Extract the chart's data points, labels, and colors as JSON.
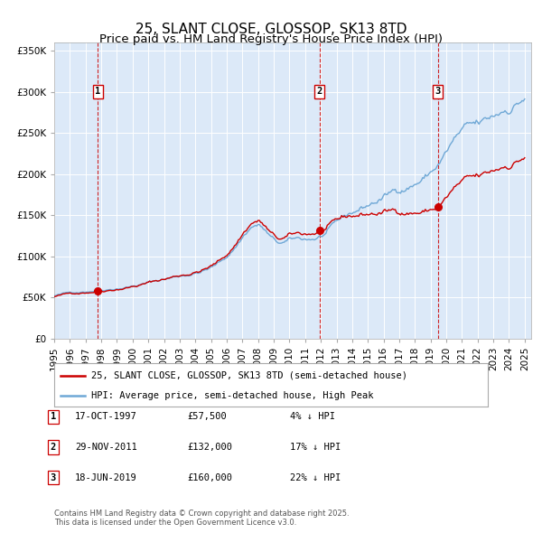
{
  "title": "25, SLANT CLOSE, GLOSSOP, SK13 8TD",
  "subtitle": "Price paid vs. HM Land Registry's House Price Index (HPI)",
  "legend_property": "25, SLANT CLOSE, GLOSSOP, SK13 8TD (semi-detached house)",
  "legend_hpi": "HPI: Average price, semi-detached house, High Peak",
  "transactions": [
    {
      "date": "1997-10-17",
      "price": 57500,
      "label": "1"
    },
    {
      "date": "2011-11-29",
      "price": 132000,
      "label": "2"
    },
    {
      "date": "2019-06-18",
      "price": 160000,
      "label": "3"
    }
  ],
  "table_rows": [
    [
      "1",
      "17-OCT-1997",
      "£57,500",
      "4% ↓ HPI"
    ],
    [
      "2",
      "29-NOV-2011",
      "£132,000",
      "17% ↓ HPI"
    ],
    [
      "3",
      "18-JUN-2019",
      "£160,000",
      "22% ↓ HPI"
    ]
  ],
  "footer": "Contains HM Land Registry data © Crown copyright and database right 2025.\nThis data is licensed under the Open Government Licence v3.0.",
  "background_color": "#dce9f8",
  "hpi_color": "#6fa8d6",
  "property_color": "#cc0000",
  "vline_color": "#cc0000",
  "marker_color": "#cc0000",
  "ylim": [
    0,
    360000
  ],
  "yticks": [
    0,
    50000,
    100000,
    150000,
    200000,
    250000,
    300000,
    350000
  ]
}
